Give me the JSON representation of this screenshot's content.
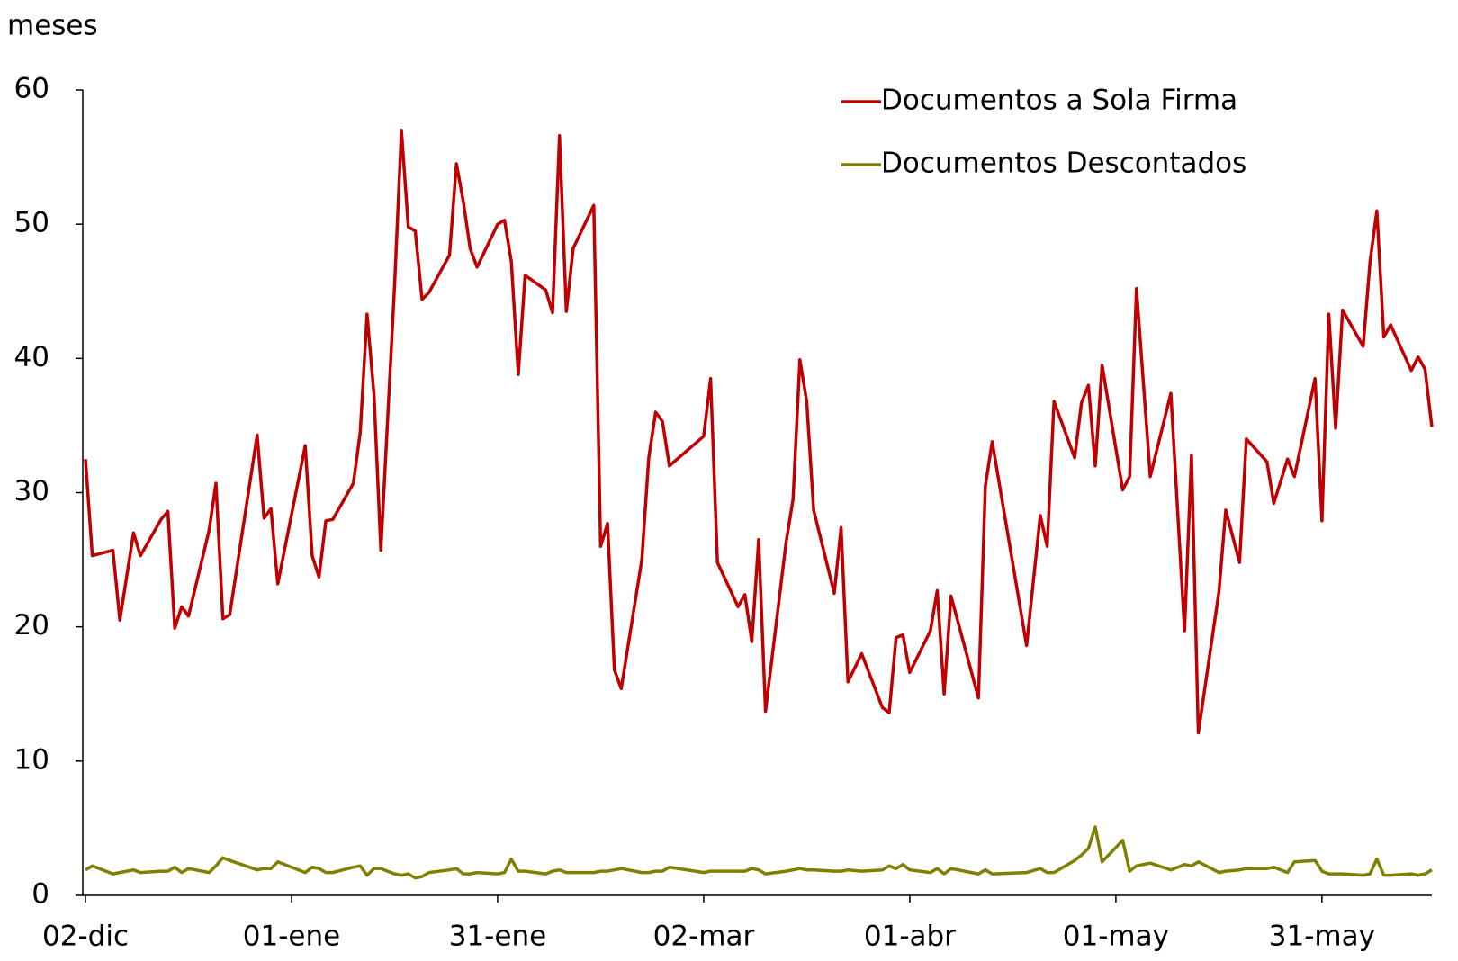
{
  "chart_data": {
    "type": "line",
    "y_label": "meses",
    "x": [
      "02-12",
      "03-12",
      "06-12",
      "07-12",
      "09-12",
      "10-12",
      "13-12",
      "14-12",
      "15-12",
      "16-12",
      "17-12",
      "20-12",
      "21-12",
      "22-12",
      "23-12",
      "27-12",
      "28-12",
      "29-12",
      "30-12",
      "03-01",
      "04-01",
      "05-01",
      "06-01",
      "07-01",
      "10-01",
      "11-01",
      "12-01",
      "13-01",
      "14-01",
      "16-01",
      "17-01",
      "18-01",
      "19-01",
      "20-01",
      "21-01",
      "24-01",
      "25-01",
      "26-01",
      "27-01",
      "28-01",
      "31-01",
      "01-02",
      "02-02",
      "03-02",
      "04-02",
      "07-02",
      "08-02",
      "09-02",
      "10-02",
      "11-02",
      "14-02",
      "15-02",
      "16-02",
      "17-02",
      "18-02",
      "21-02",
      "22-02",
      "23-02",
      "24-02",
      "25-02",
      "02-03",
      "03-03",
      "04-03",
      "07-03",
      "08-03",
      "09-03",
      "10-03",
      "11-03",
      "14-03",
      "15-03",
      "16-03",
      "17-03",
      "18-03",
      "21-03",
      "22-03",
      "23-03",
      "25-03",
      "28-03",
      "29-03",
      "30-03",
      "31-03",
      "01-04",
      "04-04",
      "05-04",
      "06-04",
      "07-04",
      "11-04",
      "12-04",
      "13-04",
      "18-04",
      "20-04",
      "21-04",
      "22-04",
      "25-04",
      "26-04",
      "27-04",
      "28-04",
      "29-04",
      "02-05",
      "03-05",
      "04-05",
      "06-05",
      "09-05",
      "11-05",
      "12-05",
      "13-05",
      "16-05",
      "17-05",
      "19-05",
      "20-05",
      "23-05",
      "24-05",
      "26-05",
      "27-05",
      "30-05",
      "31-05",
      "01-06",
      "02-06",
      "03-06",
      "06-06",
      "07-06",
      "08-06",
      "09-06",
      "10-06",
      "13-06",
      "14-06",
      "15-06",
      "16-06"
    ],
    "series": [
      {
        "name": "Documentos a Sola Firma",
        "color": "#c00000",
        "values": [
          32.5,
          25.3,
          25.7,
          20.5,
          27,
          25.3,
          28,
          28.6,
          19.9,
          21.5,
          20.8,
          27.2,
          30.7,
          20.6,
          20.9,
          34.3,
          28.1,
          28.8,
          23.2,
          33.5,
          25.3,
          23.7,
          27.9,
          28,
          30.7,
          34.5,
          43.3,
          37.3,
          25.7,
          45.5,
          57,
          49.8,
          49.5,
          44.4,
          44.9,
          47.7,
          54.5,
          51.7,
          48.2,
          46.8,
          50,
          50.3,
          47.2,
          38.8,
          46.2,
          45.1,
          43.4,
          56.6,
          43.5,
          48.2,
          51.4,
          26,
          27.7,
          16.8,
          15.4,
          25,
          32.6,
          36,
          35.3,
          32,
          34.2,
          38.5,
          24.8,
          21.5,
          22.4,
          18.9,
          26.5,
          13.7,
          26.3,
          29.5,
          39.9,
          36.8,
          28.7,
          22.5,
          27.4,
          15.9,
          18,
          14,
          13.6,
          19.2,
          19.4,
          16.6,
          19.7,
          22.7,
          15,
          22.3,
          14.7,
          30.5,
          33.8,
          18.6,
          28.3,
          26,
          36.8,
          32.6,
          36.7,
          38,
          32,
          39.5,
          30.2,
          31.2,
          45.2,
          31.2,
          37.4,
          19.7,
          32.8,
          12.1,
          22.6,
          28.7,
          24.8,
          34,
          32.3,
          29.2,
          32.5,
          31.2,
          38.5,
          27.9,
          43.3,
          34.8,
          43.6,
          40.9,
          47.2,
          51,
          41.6,
          42.5,
          39.1,
          40.1,
          39.2,
          34.9
        ]
      },
      {
        "name": "Documentos Descontados",
        "color": "#808000",
        "values": [
          1.9,
          2.2,
          1.6,
          1.7,
          1.9,
          1.7,
          1.8,
          1.8,
          2.1,
          1.7,
          2.0,
          1.7,
          2.2,
          2.8,
          2.6,
          1.9,
          2.0,
          2.0,
          2.5,
          1.7,
          2.1,
          2.0,
          1.7,
          1.7,
          2.1,
          2.2,
          1.5,
          2.0,
          2.0,
          1.6,
          1.5,
          1.6,
          1.3,
          1.4,
          1.7,
          1.9,
          2.0,
          1.6,
          1.6,
          1.7,
          1.6,
          1.7,
          2.7,
          1.8,
          1.8,
          1.6,
          1.8,
          1.9,
          1.7,
          1.7,
          1.7,
          1.8,
          1.8,
          1.9,
          2.0,
          1.7,
          1.7,
          1.8,
          1.8,
          2.1,
          1.7,
          1.8,
          1.8,
          1.8,
          1.8,
          2.0,
          1.9,
          1.6,
          1.8,
          1.9,
          2.0,
          1.9,
          1.9,
          1.8,
          1.8,
          1.9,
          1.8,
          1.9,
          2.2,
          2.0,
          2.3,
          1.9,
          1.7,
          2.0,
          1.6,
          2.0,
          1.6,
          1.9,
          1.6,
          1.7,
          2.0,
          1.7,
          1.7,
          2.6,
          3.0,
          3.5,
          5.1,
          2.5,
          4.1,
          1.8,
          2.2,
          2.4,
          1.9,
          2.3,
          2.2,
          2.5,
          1.7,
          1.8,
          1.9,
          2.0,
          2.0,
          2.1,
          1.7,
          2.5,
          2.6,
          1.8,
          1.6,
          1.6,
          1.6,
          1.5,
          1.6,
          2.7,
          1.5,
          1.5,
          1.6,
          1.5,
          1.6,
          1.9
        ]
      }
    ],
    "xlim": [
      "02-12",
      "16-06"
    ],
    "xticks": [
      {
        "value": "02-12",
        "label": "02-dic"
      },
      {
        "value": "01-01",
        "label": "01-ene"
      },
      {
        "value": "31-01",
        "label": "31-ene"
      },
      {
        "value": "02-03",
        "label": "02-mar"
      },
      {
        "value": "01-04",
        "label": "01-abr"
      },
      {
        "value": "01-05",
        "label": "01-may"
      },
      {
        "value": "31-05",
        "label": "31-may"
      }
    ],
    "ylim": [
      0,
      60
    ],
    "yticks": [
      0,
      10,
      20,
      30,
      40,
      50,
      60
    ],
    "legend": "upper right",
    "grid": false
  }
}
